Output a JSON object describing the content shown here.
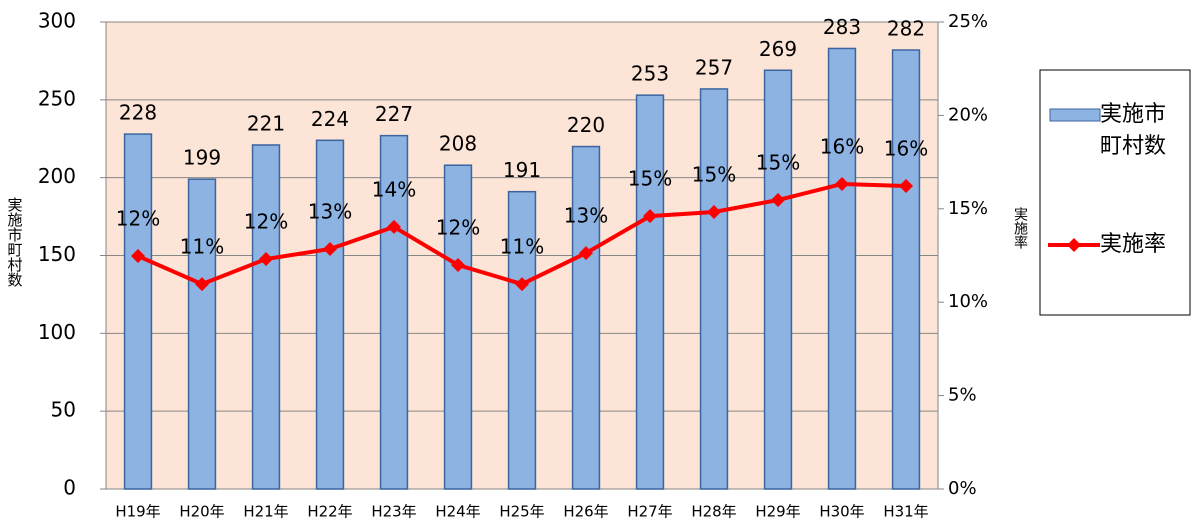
{
  "chart_data": {
    "type": "bar-line",
    "categories": [
      "H19年",
      "H20年",
      "H21年",
      "H22年",
      "H23年",
      "H24年",
      "H25年",
      "H26年",
      "H27年",
      "H28年",
      "H29年",
      "H30年",
      "H31年"
    ],
    "series": [
      {
        "name": "実施市町村数",
        "type": "bar",
        "color": "#8db3e2",
        "values": [
          228,
          199,
          221,
          224,
          227,
          208,
          191,
          220,
          253,
          257,
          269,
          283,
          282
        ]
      },
      {
        "name": "実施率",
        "type": "line",
        "axis": "y2",
        "color": "#ff0000",
        "values": [
          12.47,
          10.97,
          12.31,
          12.85,
          14.03,
          11.99,
          10.97,
          12.63,
          14.61,
          14.83,
          15.47,
          16.33,
          16.22
        ],
        "value_labels": [
          "12%",
          "11%",
          "12%",
          "13%",
          "14%",
          "12%",
          "11%",
          "13%",
          "15%",
          "15%",
          "15%",
          "16%",
          "16%"
        ]
      }
    ],
    "ylabel": "実施市町村数",
    "y2label": "実施率",
    "ylim": [
      0,
      300
    ],
    "yticks": [
      0,
      50,
      100,
      150,
      200,
      250,
      300
    ],
    "y2lim": [
      0,
      25
    ],
    "y2ticks": [
      {
        "value": 0,
        "label": "0%"
      },
      {
        "value": 5,
        "label": "5%"
      },
      {
        "value": 10,
        "label": "10%"
      },
      {
        "value": 15,
        "label": "15%"
      },
      {
        "value": 20,
        "label": "20%"
      },
      {
        "value": 25,
        "label": "25%"
      }
    ],
    "grid": true,
    "legend": "right",
    "background": "#fce4d6"
  }
}
